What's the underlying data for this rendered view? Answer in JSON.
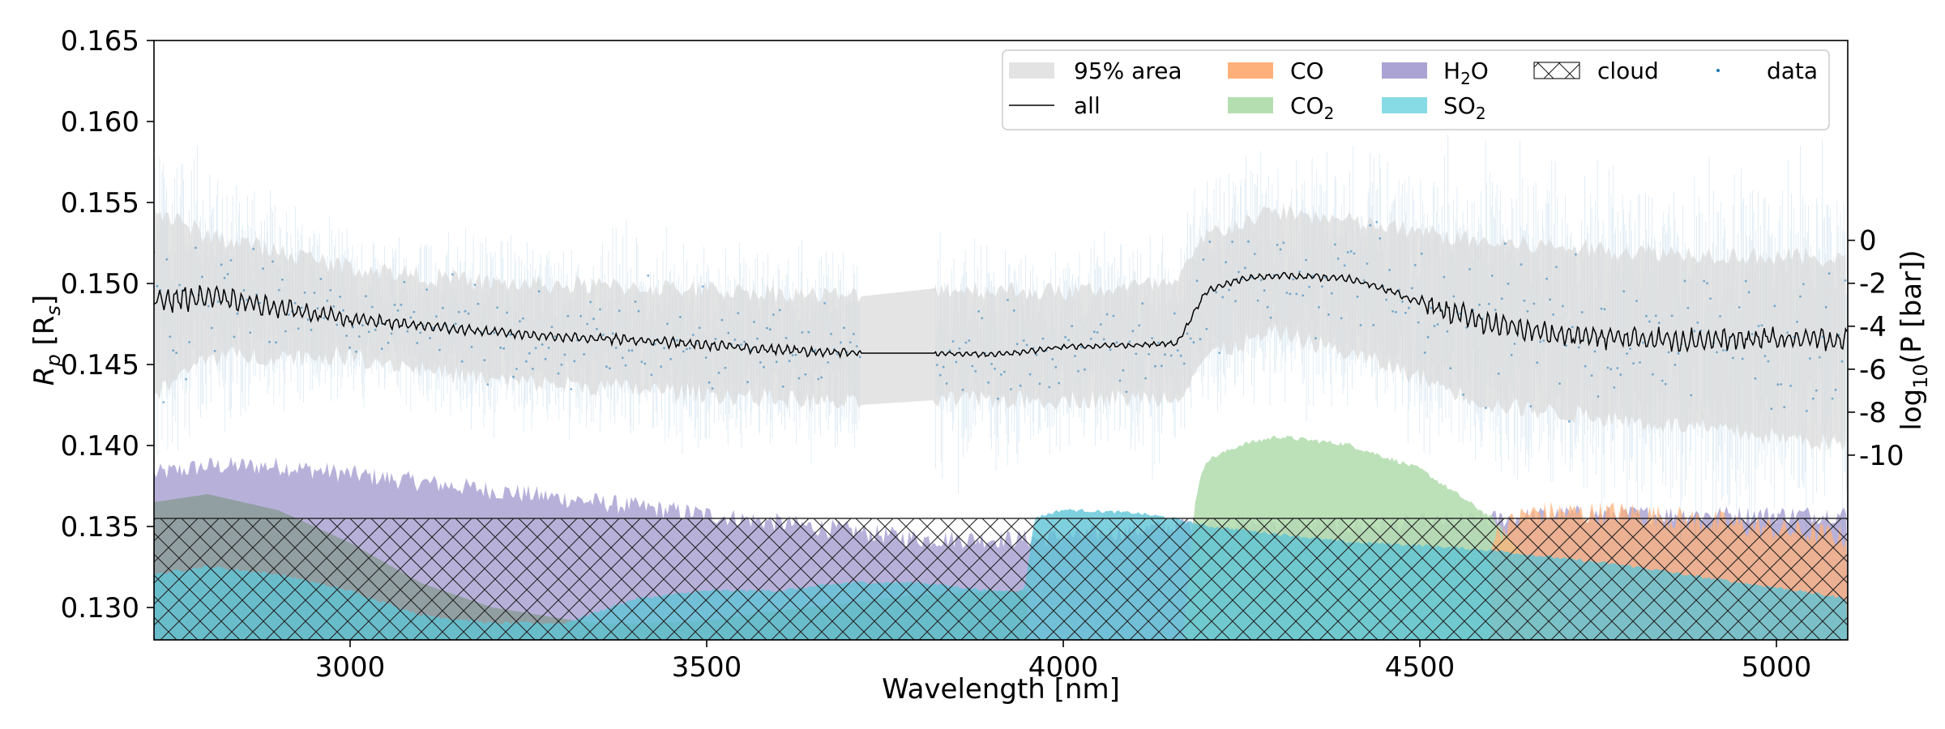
{
  "chart_data": {
    "type": "line",
    "xlabel": "Wavelength [nm]",
    "ylabel": "R_p [R_s]",
    "ylabel_parts": {
      "main": "R",
      "main_sub": "p",
      "open": " [R",
      "sub": "s",
      "close": "]"
    },
    "y2label": "log10(P [bar])",
    "y2label_parts": {
      "main": "log",
      "sub": "10",
      "rest": "(P [bar])"
    },
    "xlim": [
      2725,
      5100
    ],
    "ylim": [
      0.128,
      0.165
    ],
    "y2lim": [
      -18.6,
      9.3
    ],
    "xticks": [
      3000,
      3500,
      4000,
      4500,
      5000
    ],
    "xtick_labels": [
      "3000",
      "3500",
      "4000",
      "4500",
      "5000"
    ],
    "yticks": [
      0.13,
      0.135,
      0.14,
      0.145,
      0.15,
      0.155,
      0.16,
      0.165
    ],
    "ytick_labels": [
      "0.130",
      "0.135",
      "0.140",
      "0.145",
      "0.150",
      "0.155",
      "0.160",
      "0.165"
    ],
    "y2ticks": [
      -10,
      -8,
      -6,
      -4,
      -2,
      0
    ],
    "y2tick_labels": [
      "-10",
      "-8",
      "-6",
      "-4",
      "-2",
      "0"
    ],
    "grid": false,
    "legend_position": "top-right",
    "gap": [
      3715,
      3820
    ],
    "cloud_top": 0.1355,
    "legend": [
      {
        "key": "area",
        "label": "95% area"
      },
      {
        "key": "co",
        "label": "CO"
      },
      {
        "key": "h2o",
        "label": "H2O",
        "main": "H",
        "sub": "2",
        "rest": "O"
      },
      {
        "key": "cloud",
        "label": "cloud"
      },
      {
        "key": "data",
        "label": "data"
      },
      {
        "key": "all",
        "label": "all"
      },
      {
        "key": "co2",
        "label": "CO2",
        "main": "CO",
        "sub": "2",
        "rest": ""
      },
      {
        "key": "so2",
        "label": "SO2",
        "main": "SO",
        "sub": "2",
        "rest": ""
      }
    ],
    "series": [
      {
        "name": "all",
        "x": [
          2725,
          2800,
          2900,
          3000,
          3100,
          3200,
          3300,
          3400,
          3500,
          3600,
          3715,
          3820,
          3900,
          3950,
          4000,
          4100,
          4160,
          4175,
          4200,
          4250,
          4300,
          4400,
          4450,
          4500,
          4600,
          4700,
          4800,
          4900,
          5000,
          5100
        ],
        "y": [
          0.149,
          0.1492,
          0.1485,
          0.1478,
          0.1474,
          0.147,
          0.1467,
          0.1465,
          0.1462,
          0.1459,
          0.1457,
          0.1457,
          0.1456,
          0.1458,
          0.1461,
          0.1462,
          0.1463,
          0.1475,
          0.1495,
          0.1503,
          0.1505,
          0.1503,
          0.1497,
          0.1488,
          0.1475,
          0.1468,
          0.1466,
          0.1465,
          0.1466,
          0.1465
        ]
      },
      {
        "name": "95% area",
        "x": [
          2725,
          2800,
          3000,
          3200,
          3400,
          3715,
          3820,
          4000,
          4160,
          4200,
          4300,
          4450,
          4600,
          4800,
          5100
        ],
        "upper": [
          0.1545,
          0.153,
          0.151,
          0.15,
          0.1498,
          0.1492,
          0.1497,
          0.1495,
          0.15,
          0.153,
          0.1545,
          0.1535,
          0.1525,
          0.152,
          0.1515
        ],
        "lower": [
          0.143,
          0.1455,
          0.1455,
          0.144,
          0.1435,
          0.1425,
          0.1428,
          0.1428,
          0.143,
          0.1455,
          0.147,
          0.145,
          0.1425,
          0.1415,
          0.14
        ]
      },
      {
        "name": "H2O",
        "x": [
          2725,
          2800,
          2900,
          3000,
          3100,
          3200,
          3300,
          3400,
          3500,
          3600,
          3700,
          3800,
          3950,
          3960,
          4100,
          4200,
          4300,
          4400,
          4500,
          4600,
          4700,
          4800,
          4900,
          5000,
          5100
        ],
        "y": [
          0.138,
          0.1385,
          0.1385,
          0.138,
          0.1375,
          0.137,
          0.1365,
          0.136,
          0.1355,
          0.135,
          0.1345,
          0.134,
          0.134,
          0.134,
          0.1345,
          0.135,
          0.135,
          0.1348,
          0.135,
          0.1352,
          0.1355,
          0.1355,
          0.1355,
          0.1355,
          0.1355
        ]
      },
      {
        "name": "CO2",
        "x": [
          4170,
          4185,
          4190,
          4200,
          4250,
          4300,
          4400,
          4500,
          4550,
          4600,
          4650,
          4700
        ],
        "y": [
          0.129,
          0.1365,
          0.1375,
          0.139,
          0.14,
          0.1405,
          0.14,
          0.1385,
          0.137,
          0.1355,
          0.133,
          0.129
        ]
      },
      {
        "name": "CO",
        "x": [
          4600,
          4650,
          4700,
          4800,
          4900,
          5000,
          5100
        ],
        "y": [
          0.134,
          0.1355,
          0.1355,
          0.1355,
          0.135,
          0.1345,
          0.134
        ]
      },
      {
        "name": "SO2",
        "x": [
          2725,
          2800,
          2900,
          3000,
          3100,
          3200,
          3300,
          3400,
          3500,
          3600,
          3700,
          3800,
          3900,
          3945,
          3960,
          4000,
          4100,
          4150,
          4200,
          4300,
          4400,
          4500,
          4600,
          4700,
          4800,
          4900,
          5000,
          5100
        ],
        "y": [
          0.132,
          0.1325,
          0.132,
          0.131,
          0.1295,
          0.129,
          0.129,
          0.1305,
          0.131,
          0.131,
          0.1315,
          0.1315,
          0.131,
          0.131,
          0.1355,
          0.136,
          0.1358,
          0.1355,
          0.135,
          0.1345,
          0.134,
          0.1338,
          0.1335,
          0.133,
          0.1325,
          0.1318,
          0.1312,
          0.1305
        ]
      },
      {
        "name": "contribution-grey",
        "x": [
          2725,
          2800,
          2900,
          3000,
          3100,
          3200,
          3300,
          3350,
          3400,
          3500,
          3600,
          3700,
          3800,
          3900,
          3950
        ],
        "y": [
          0.1365,
          0.137,
          0.136,
          0.134,
          0.1315,
          0.13,
          0.1293,
          0.129,
          0.129,
          0.1292,
          0.1298,
          0.1303,
          0.1308,
          0.131,
          0.131
        ]
      }
    ]
  }
}
